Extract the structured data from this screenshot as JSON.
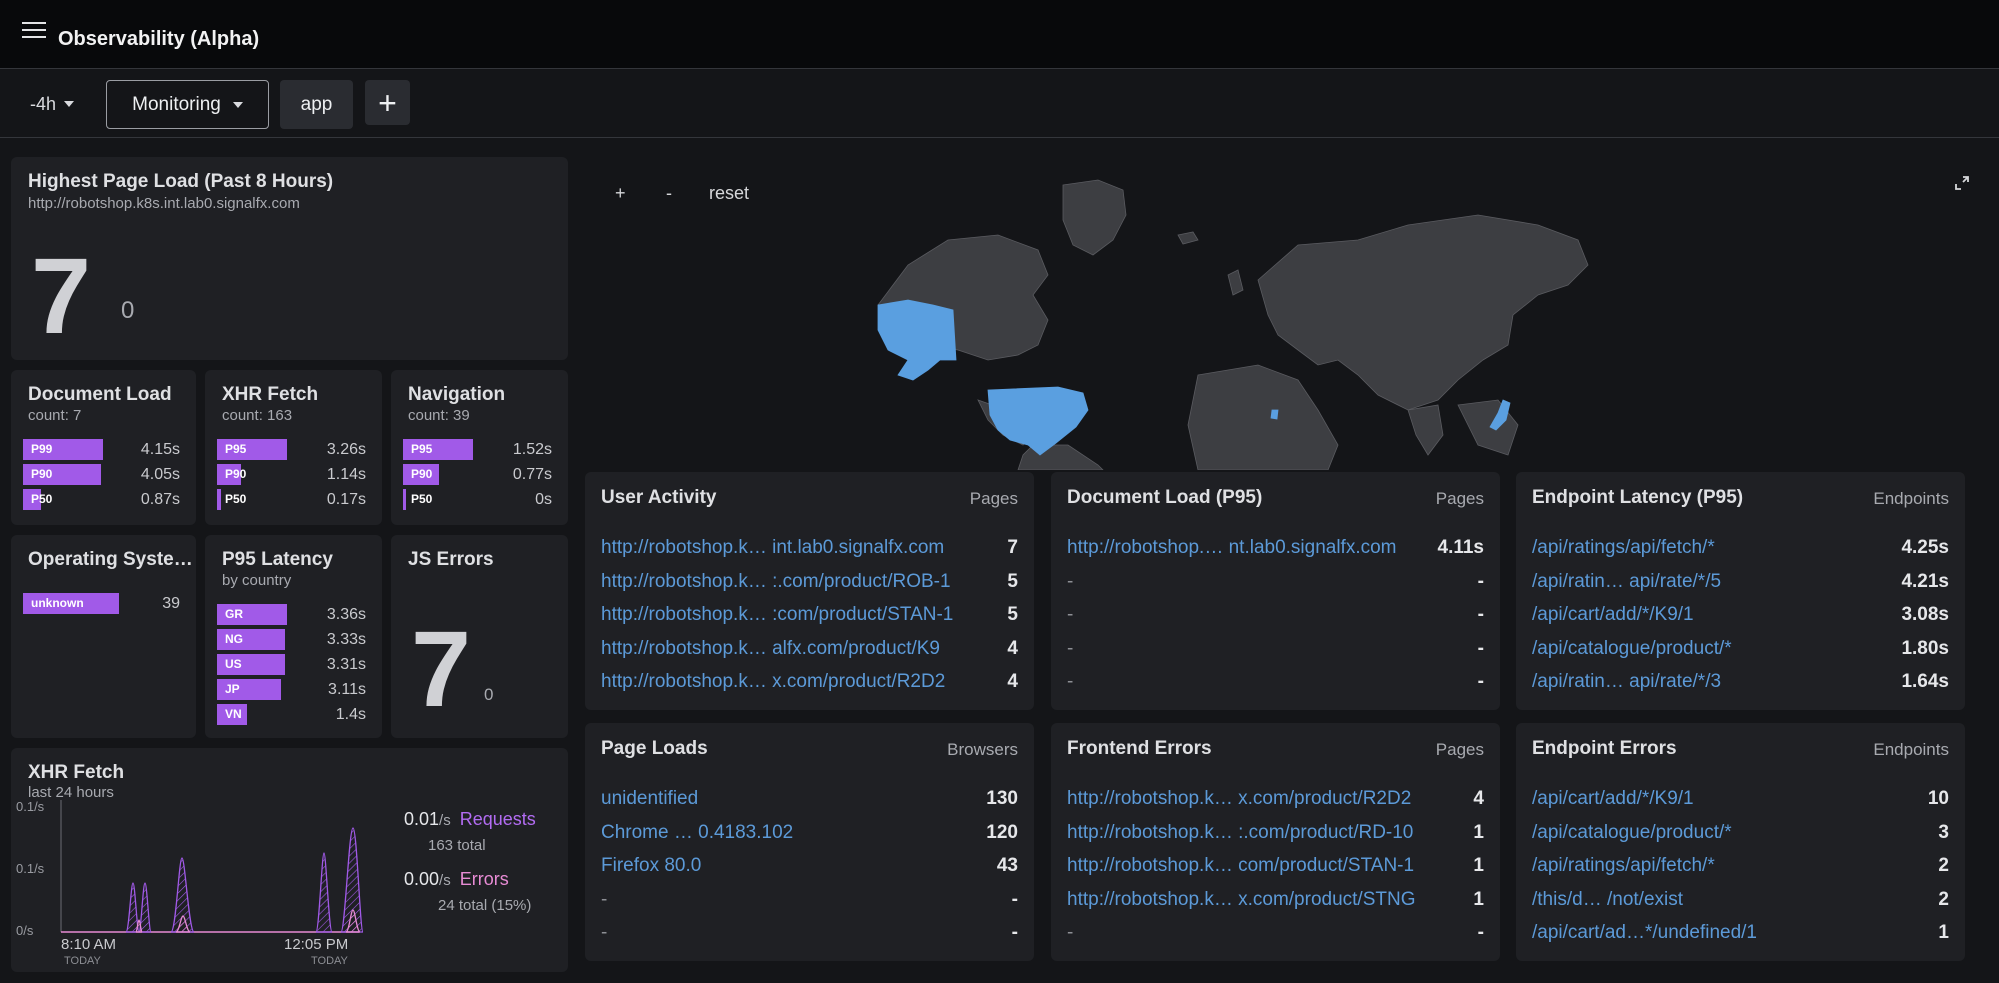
{
  "header": {
    "title": "Observability (Alpha)"
  },
  "filters": {
    "time": "-4h",
    "dashboard": "Monitoring",
    "tag": "app",
    "add": "+"
  },
  "highest_page_load": {
    "title": "Highest Page Load (Past 8 Hours)",
    "url": "http://robotshop.k8s.int.lab0.signalfx.com",
    "value": "7",
    "secondary": "0"
  },
  "document_load": {
    "title": "Document Load",
    "count": "count: 7",
    "rows": [
      {
        "label": "P99",
        "value": "4.15s",
        "fill": 0.4
      },
      {
        "label": "P90",
        "value": "4.05s",
        "fill": 0.39
      },
      {
        "label": "P50",
        "value": "0.87s",
        "fill": 0.09
      }
    ]
  },
  "xhr_fetch": {
    "title": "XHR Fetch",
    "count": "count: 163",
    "rows": [
      {
        "label": "P95",
        "value": "3.26s",
        "fill": 0.35
      },
      {
        "label": "P90",
        "value": "1.14s",
        "fill": 0.12
      },
      {
        "label": "P50",
        "value": "0.17s",
        "fill": 0.02
      }
    ]
  },
  "navigation": {
    "title": "Navigation",
    "count": "count: 39",
    "rows": [
      {
        "label": "P95",
        "value": "1.52s",
        "fill": 0.35
      },
      {
        "label": "P90",
        "value": "0.77s",
        "fill": 0.18
      },
      {
        "label": "P50",
        "value": "0s",
        "fill": 0
      }
    ]
  },
  "operating_system": {
    "title": "Operating Syste…",
    "rows": [
      {
        "label": "unknown",
        "value": "39",
        "fill": 0.48
      }
    ]
  },
  "p95_latency": {
    "title": "P95 Latency",
    "sub": "by country",
    "rows": [
      {
        "label": "GR",
        "value": "3.36s",
        "fill": 0.35
      },
      {
        "label": "NG",
        "value": "3.33s",
        "fill": 0.34
      },
      {
        "label": "US",
        "value": "3.31s",
        "fill": 0.34
      },
      {
        "label": "JP",
        "value": "3.11s",
        "fill": 0.32
      },
      {
        "label": "VN",
        "value": "1.4s",
        "fill": 0.15
      }
    ]
  },
  "js_errors": {
    "title": "JS Errors",
    "value": "7",
    "secondary": "0"
  },
  "xhr_chart": {
    "title": "XHR Fetch",
    "sub": "last 24 hours",
    "y_ticks": [
      "0.1/s",
      "0.1/s",
      "0/s"
    ],
    "x_ticks": [
      {
        "time": "8:10 AM",
        "day": "TODAY"
      },
      {
        "time": "12:05 PM",
        "day": "TODAY"
      }
    ],
    "requests": {
      "rate": "0.01",
      "unit": "/s",
      "label": "Requests",
      "total": "163",
      "total_label": "total"
    },
    "errors": {
      "rate": "0.00",
      "unit": "/s",
      "label": "Errors",
      "total": "24",
      "total_label": "total (15%)"
    }
  },
  "map": {
    "zoom_in": "+",
    "zoom_out": "-",
    "reset": "reset",
    "highlight_color": "#5a9fe0",
    "land_color": "#3d3e42"
  },
  "tables": [
    {
      "id": "user-activity",
      "title": "User Activity",
      "type": "Pages",
      "rows": [
        {
          "name": "http://robotshop.k… int.lab0.signalfx.com",
          "value": "7"
        },
        {
          "name": "http://robotshop.k… :.com/product/ROB-1",
          "value": "5"
        },
        {
          "name": "http://robotshop.k… :com/product/STAN-1",
          "value": "5"
        },
        {
          "name": "http://robotshop.k… alfx.com/product/K9",
          "value": "4"
        },
        {
          "name": "http://robotshop.k… x.com/product/R2D2",
          "value": "4"
        }
      ]
    },
    {
      "id": "document-load-p95",
      "title": "Document Load (P95)",
      "type": "Pages",
      "rows": [
        {
          "name": "http://robotshop.… nt.lab0.signalfx.com",
          "value": "4.11s"
        },
        {
          "name": "-",
          "value": "-"
        },
        {
          "name": "-",
          "value": "-"
        },
        {
          "name": "-",
          "value": "-"
        },
        {
          "name": "-",
          "value": "-"
        }
      ]
    },
    {
      "id": "endpoint-latency",
      "title": "Endpoint Latency (P95)",
      "type": "Endpoints",
      "rows": [
        {
          "name": "/api/ratings/api/fetch/*",
          "value": "4.25s"
        },
        {
          "name": "/api/ratin… api/rate/*/5",
          "value": "4.21s"
        },
        {
          "name": "/api/cart/add/*/K9/1",
          "value": "3.08s"
        },
        {
          "name": "/api/catalogue/product/*",
          "value": "1.80s"
        },
        {
          "name": "/api/ratin… api/rate/*/3",
          "value": "1.64s"
        }
      ]
    },
    {
      "id": "page-loads",
      "title": "Page Loads",
      "type": "Browsers",
      "rows": [
        {
          "name": "unidentified",
          "value": "130"
        },
        {
          "name": "Chrome … 0.4183.102",
          "value": "120"
        },
        {
          "name": "Firefox 80.0",
          "value": "43"
        },
        {
          "name": "-",
          "value": "-"
        },
        {
          "name": "-",
          "value": "-"
        }
      ]
    },
    {
      "id": "frontend-errors",
      "title": "Frontend Errors",
      "type": "Pages",
      "rows": [
        {
          "name": "http://robotshop.k… x.com/product/R2D2",
          "value": "4"
        },
        {
          "name": "http://robotshop.k… :.com/product/RD-10",
          "value": "1"
        },
        {
          "name": "http://robotshop.k… com/product/STAN-1",
          "value": "1"
        },
        {
          "name": "http://robotshop.k… x.com/product/STNG",
          "value": "1"
        },
        {
          "name": "-",
          "value": "-"
        }
      ]
    },
    {
      "id": "endpoint-errors",
      "title": "Endpoint Errors",
      "type": "Endpoints",
      "rows": [
        {
          "name": "/api/cart/add/*/K9/1",
          "value": "10"
        },
        {
          "name": "/api/catalogue/product/*",
          "value": "3"
        },
        {
          "name": "/api/ratings/api/fetch/*",
          "value": "2"
        },
        {
          "name": "/this/d… /not/exist",
          "value": "2"
        },
        {
          "name": "/api/cart/ad…*/undefined/1",
          "value": "1"
        }
      ]
    }
  ]
}
